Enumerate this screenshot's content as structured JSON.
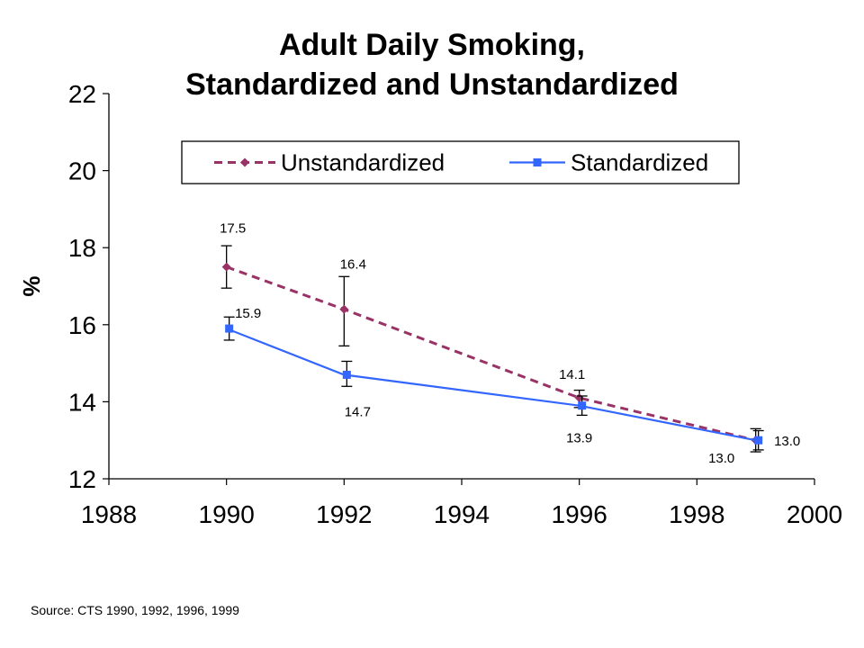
{
  "chart_data": {
    "type": "line",
    "title_lines": [
      "Adult Daily Smoking,",
      "Standardized and Unstandardized"
    ],
    "ylabel": "%",
    "xlabel": "",
    "xlim": [
      1988,
      2000
    ],
    "ylim": [
      12,
      22
    ],
    "x_ticks": [
      "1988",
      "1990",
      "1992",
      "1994",
      "1996",
      "1998",
      "2000"
    ],
    "y_ticks": [
      "12",
      "14",
      "16",
      "18",
      "20",
      "22"
    ],
    "grid": false,
    "legend_position": "top",
    "series": [
      {
        "name": "Unstandardized",
        "color": "#993366",
        "style": "dashed",
        "marker": "diamond",
        "x": [
          1990,
          1992,
          1996,
          1999
        ],
        "y": [
          17.5,
          16.4,
          14.1,
          13.0
        ],
        "err_low": [
          16.95,
          15.45,
          13.85,
          12.7
        ],
        "err_high": [
          18.05,
          17.25,
          14.3,
          13.3
        ],
        "labels": [
          "17.5",
          "16.4",
          "14.1",
          "13.0"
        ]
      },
      {
        "name": "Standardized",
        "color": "#3366ff",
        "style": "solid",
        "marker": "square",
        "x": [
          1990,
          1992,
          1996,
          1999
        ],
        "y": [
          15.9,
          14.7,
          13.9,
          13.0
        ],
        "err_low": [
          15.6,
          14.4,
          13.65,
          12.75
        ],
        "err_high": [
          16.2,
          15.05,
          14.15,
          13.25
        ],
        "labels": [
          "15.9",
          "14.7",
          "13.9",
          "13.0"
        ]
      }
    ]
  },
  "source": "Source:  CTS 1990, 1992, 1996, 1999"
}
